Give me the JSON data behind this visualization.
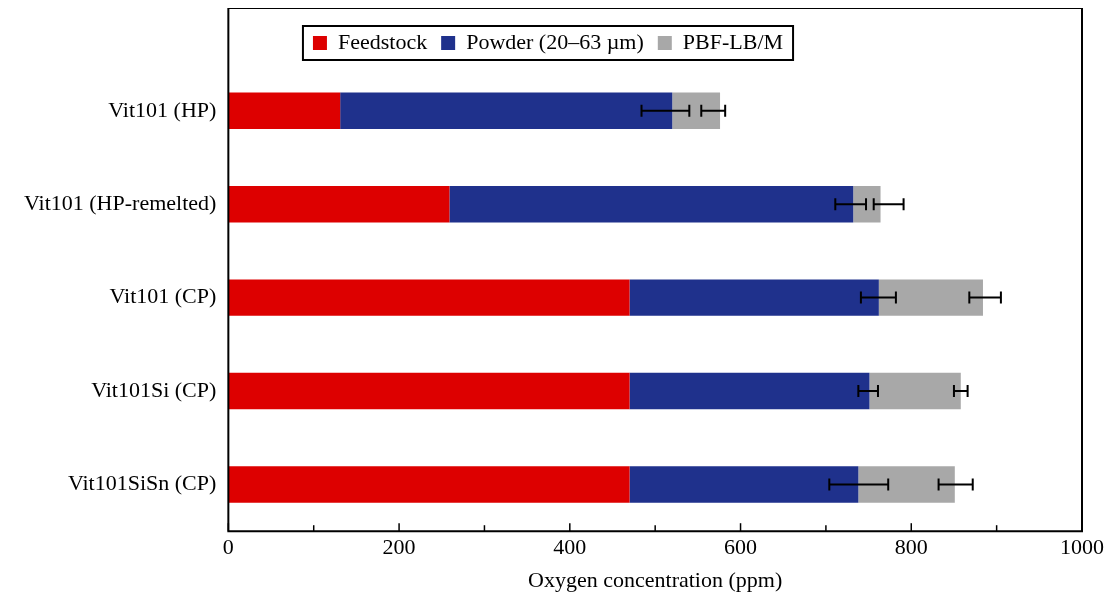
{
  "chart_data": {
    "type": "bar",
    "orientation": "horizontal",
    "stacked": true,
    "xlabel": "Oxygen concentration (ppm)",
    "categories": [
      "Vit101 (HP)",
      "Vit101 (HP-remelted)",
      "Vit101 (CP)",
      "Vit101Si (CP)",
      "Vit101SiSn (CP)"
    ],
    "series": [
      {
        "name": "Feedstock",
        "color": "#dd0000",
        "values": [
          131,
          259,
          470,
          470,
          470
        ]
      },
      {
        "name": "Powder (20–63 µm)",
        "color": "#1f318c",
        "values": [
          389,
          473,
          292,
          281,
          268
        ],
        "errors": [
          [
            484,
            540
          ],
          [
            711,
            747
          ],
          [
            741,
            782
          ],
          [
            738,
            761
          ],
          [
            704,
            773
          ]
        ]
      },
      {
        "name": "PBF-LB/M",
        "color": "#a8a8a8",
        "values": [
          56,
          32,
          122,
          107,
          113
        ],
        "errors": [
          [
            554,
            582
          ],
          [
            756,
            791
          ],
          [
            868,
            905
          ],
          [
            850,
            866
          ],
          [
            832,
            872
          ]
        ]
      }
    ],
    "xlim": [
      0,
      1000
    ],
    "xticks": [
      0,
      {
        "value": 100,
        "label": null
      },
      200,
      {
        "value": 300,
        "label": null
      },
      400,
      {
        "value": 500,
        "label": null
      },
      600,
      {
        "value": 700,
        "label": null
      },
      800,
      {
        "value": 900,
        "label": null
      },
      1000
    ],
    "grid": false,
    "legend": "top"
  }
}
